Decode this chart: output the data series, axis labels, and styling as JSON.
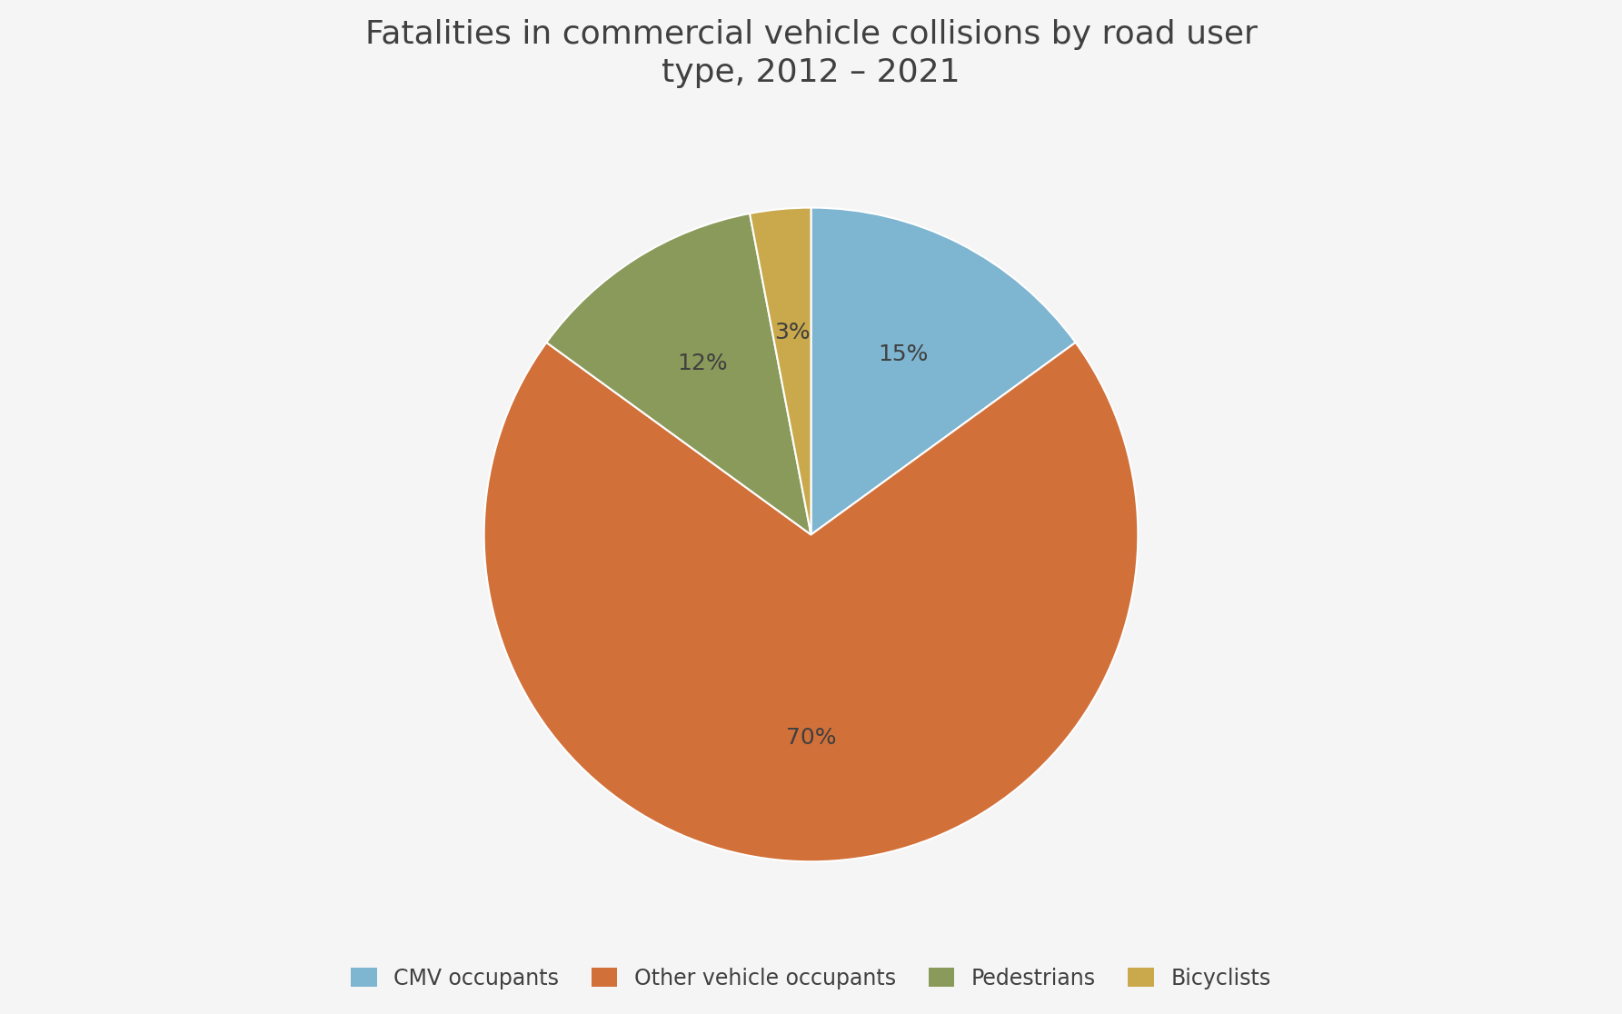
{
  "title": "Fatalities in commercial vehicle collisions by road user\ntype, 2012 – 2021",
  "title_fontsize": 26,
  "title_color": "#404040",
  "labels": [
    "CMV occupants",
    "Other vehicle occupants",
    "Pedestrians",
    "Bicyclists"
  ],
  "values": [
    15,
    70,
    12,
    3
  ],
  "colors": [
    "#7eb5d1",
    "#d2703a",
    "#8a9a5b",
    "#c9a94b"
  ],
  "autopct_labels": [
    "15%",
    "70%",
    "12%",
    "3%"
  ],
  "autopct_fontsize": 18,
  "legend_fontsize": 17,
  "background_color": "#f5f5f5",
  "startangle": 90,
  "legend_loc": "lower center",
  "legend_ncol": 4
}
